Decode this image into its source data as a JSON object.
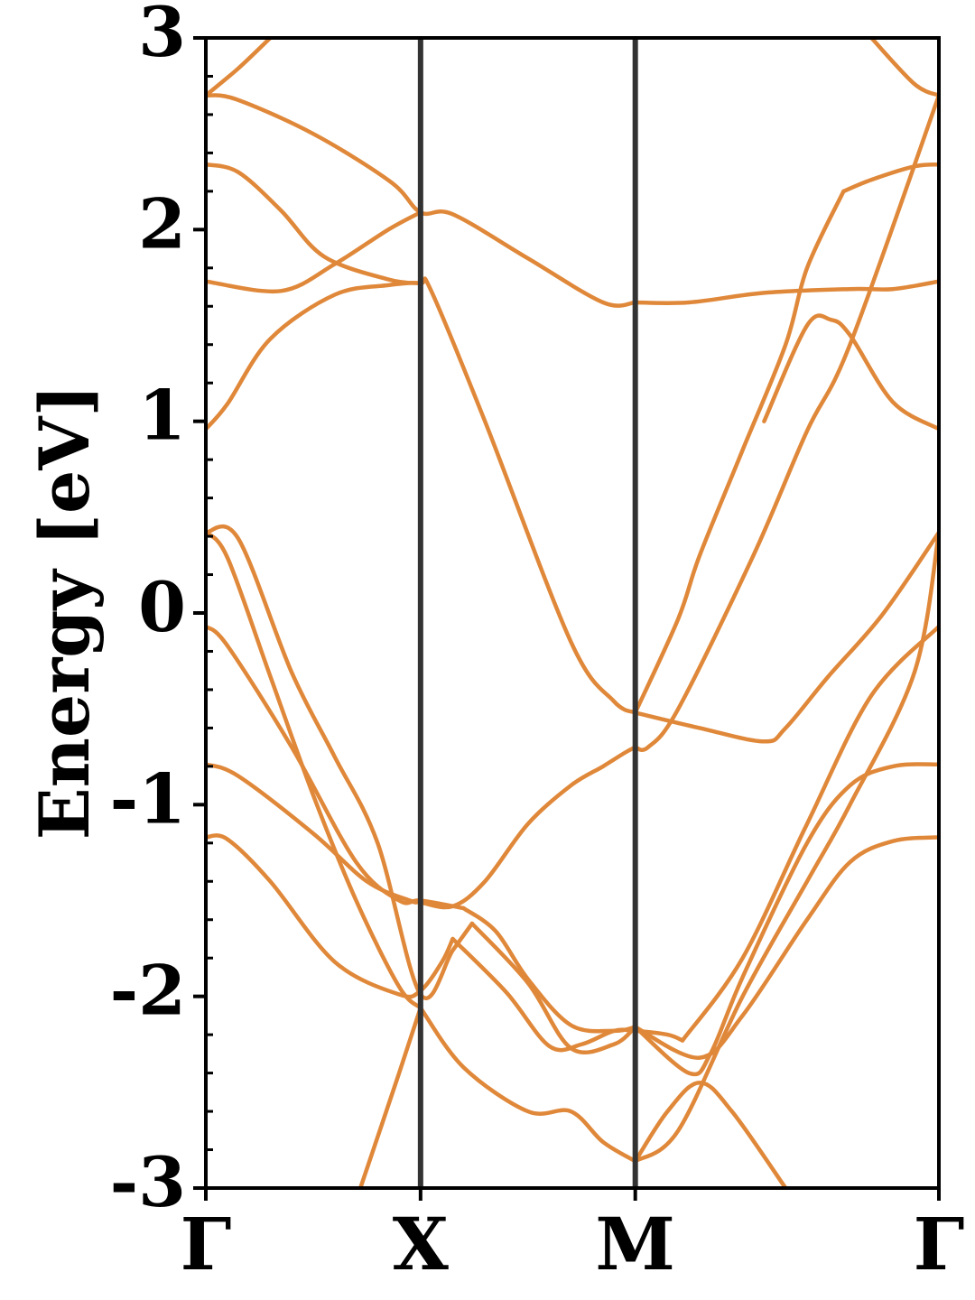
{
  "chart_data": {
    "type": "line",
    "title": "",
    "xlabel": "",
    "ylabel": "Energy [eV]",
    "ylim": [
      -3,
      3
    ],
    "yticks": [
      "3",
      "2",
      "1",
      "0",
      "-1",
      "-2",
      "-3"
    ],
    "ytick_values": [
      3,
      2,
      1,
      0,
      -1,
      -2,
      -3
    ],
    "xticks": [
      "Γ",
      "X",
      "M",
      "Γ"
    ],
    "xtick_values": [
      0,
      1,
      2,
      3.414
    ],
    "kpath_vertical_lines": [
      1,
      2
    ],
    "grid": false,
    "legend": "none",
    "colors": {
      "band": "#e0883a",
      "band_highlight": "#f08a24",
      "kpath_line": "#333333",
      "axes": "#000000"
    },
    "series": [
      {
        "x": [
          0.0,
          0.14,
          0.5,
          0.86,
          1.0,
          1.15,
          1.5,
          1.85,
          2.0
        ],
        "y": [
          2.7,
          2.68,
          2.5,
          2.25,
          2.09,
          2.08,
          1.85,
          1.62,
          1.62
        ]
      },
      {
        "x": [
          2.0,
          2.25,
          2.6,
          3.0,
          3.2,
          3.414
        ],
        "y": [
          1.62,
          1.62,
          1.67,
          1.69,
          1.69,
          1.73
        ]
      },
      {
        "x": [
          0.0,
          0.15,
          0.35,
          0.55,
          0.85,
          1.0
        ],
        "y": [
          2.34,
          2.3,
          2.1,
          1.86,
          1.74,
          1.72
        ]
      },
      {
        "x": [
          0.0,
          0.35,
          0.6,
          0.85,
          1.0
        ],
        "y": [
          1.73,
          1.68,
          1.82,
          2.0,
          2.09
        ]
      },
      {
        "x": [
          0.0,
          0.1,
          0.3,
          0.6,
          0.85,
          1.0,
          1.05,
          1.3,
          1.7,
          1.9,
          2.0
        ],
        "y": [
          0.96,
          1.09,
          1.43,
          1.66,
          1.71,
          1.72,
          1.68,
          1.0,
          -0.15,
          -0.46,
          -0.52
        ]
      },
      {
        "x": [
          2.0,
          2.3,
          2.6,
          2.7,
          2.9,
          3.15,
          3.414
        ],
        "y": [
          -0.52,
          -0.6,
          -0.67,
          -0.6,
          -0.33,
          -0.01,
          0.42
        ]
      },
      {
        "x": [
          0.0,
          0.1,
          0.3,
          0.6,
          0.9,
          1.0,
          1.1,
          1.15
        ],
        "y": [
          -1.17,
          -1.18,
          -1.4,
          -1.82,
          -1.99,
          -1.97,
          -1.82,
          -1.7
        ]
      },
      {
        "x": [
          1.15,
          1.4,
          1.6,
          1.75,
          1.9,
          2.0,
          2.15,
          2.22
        ],
        "y": [
          -1.7,
          -1.98,
          -2.26,
          -2.25,
          -2.18,
          -2.18,
          -2.2,
          -2.23
        ]
      },
      {
        "x": [
          2.22,
          2.5,
          2.8,
          3.1,
          3.414
        ],
        "y": [
          -2.23,
          -1.8,
          -1.1,
          -0.43,
          -0.07
        ]
      },
      {
        "x": [
          0.0,
          0.15,
          0.5,
          0.75,
          0.95,
          1.0,
          1.15,
          1.3,
          1.5,
          1.7,
          1.85,
          1.95,
          2.0
        ],
        "y": [
          -0.79,
          -0.85,
          -1.15,
          -1.4,
          -1.5,
          -1.51,
          -1.53,
          -1.4,
          -1.1,
          -0.9,
          -0.8,
          -0.73,
          -0.7
        ]
      },
      {
        "x": [
          2.0,
          2.06,
          2.2,
          2.55,
          2.8,
          3.0,
          3.414
        ],
        "y": [
          -0.7,
          -0.7,
          -0.5,
          0.3,
          0.95,
          1.4,
          2.7
        ]
      },
      {
        "x": [
          0.0,
          0.1,
          0.3,
          0.5,
          0.7,
          0.9,
          1.0
        ],
        "y": [
          0.42,
          0.29,
          -0.33,
          -0.95,
          -1.5,
          -1.95,
          -2.06
        ]
      },
      {
        "x": [
          1.0,
          1.2,
          1.5,
          1.7,
          1.85,
          2.0
        ],
        "y": [
          -2.06,
          -2.37,
          -2.6,
          -2.6,
          -2.76,
          -2.86
        ]
      },
      {
        "x": [
          2.0,
          2.2,
          2.5,
          2.8,
          3.0,
          3.3,
          3.414
        ],
        "y": [
          -2.86,
          -2.7,
          -2.0,
          -1.4,
          -1.0,
          -0.31,
          0.42
        ]
      },
      {
        "x": [
          0.0,
          0.1,
          0.4,
          0.7,
          0.9,
          1.0,
          1.2
        ],
        "y": [
          -0.07,
          -0.17,
          -0.7,
          -1.3,
          -1.5,
          -1.5,
          -1.54
        ]
      },
      {
        "x": [
          1.2,
          1.35,
          1.5,
          1.7,
          1.9,
          2.0
        ],
        "y": [
          -1.54,
          -1.66,
          -1.91,
          -2.15,
          -2.18,
          -2.16
        ]
      },
      {
        "x": [
          2.0,
          2.3,
          2.5,
          2.8,
          3.0,
          3.2,
          3.414
        ],
        "y": [
          -2.16,
          -2.32,
          -2.1,
          -1.6,
          -1.3,
          -1.19,
          -1.17
        ]
      },
      {
        "x": [
          0.0,
          0.15,
          0.4,
          0.6,
          0.8,
          1.0,
          1.15,
          1.24
        ],
        "y": [
          0.42,
          0.39,
          -0.31,
          -0.75,
          -1.2,
          -1.99,
          -1.76,
          -1.62
        ]
      },
      {
        "x": [
          1.24,
          1.5,
          1.7,
          1.9,
          2.0
        ],
        "y": [
          -1.62,
          -1.93,
          -2.27,
          -2.25,
          -2.16
        ]
      },
      {
        "x": [
          0.72,
          0.9,
          1.0
        ],
        "y": [
          -3.0,
          -2.4,
          -2.06
        ]
      },
      {
        "x": [
          2.0,
          2.2,
          2.3,
          2.5,
          2.7,
          2.8,
          2.97
        ],
        "y": [
          -0.52,
          -0.03,
          0.3,
          0.85,
          1.4,
          1.8,
          2.2
        ]
      },
      {
        "x": [
          2.97,
          3.1,
          3.3,
          3.414
        ],
        "y": [
          2.2,
          2.26,
          2.33,
          2.34
        ]
      },
      {
        "x": [
          0.0,
          0.15,
          0.3
        ],
        "y": [
          2.7,
          2.84,
          3.0
        ]
      },
      {
        "x": [
          3.1,
          3.3,
          3.414
        ],
        "y": [
          3.0,
          2.76,
          2.7
        ]
      },
      {
        "x": [
          2.0,
          2.15,
          2.3,
          2.45,
          2.7
        ],
        "y": [
          -2.86,
          -2.6,
          -2.45,
          -2.6,
          -3.0
        ]
      },
      {
        "x": [
          2.6,
          2.8,
          2.91,
          3.0,
          3.2,
          3.414
        ],
        "y": [
          1.0,
          1.5,
          1.53,
          1.45,
          1.1,
          0.96
        ]
      },
      {
        "x": [
          2.0,
          2.25,
          2.35,
          2.5,
          2.8,
          3.0,
          3.2,
          3.414
        ],
        "y": [
          -2.16,
          -2.4,
          -2.3,
          -1.9,
          -1.2,
          -0.9,
          -0.8,
          -0.79
        ]
      }
    ]
  }
}
